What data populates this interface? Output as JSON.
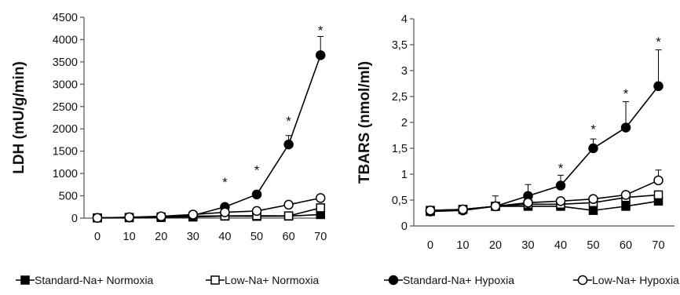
{
  "chart_data": [
    {
      "type": "line",
      "x": [
        0,
        10,
        20,
        30,
        40,
        50,
        60,
        70
      ],
      "ylabel": "LDH (mU/g/min)",
      "ylim": [
        0,
        4500
      ],
      "yticks": [
        0,
        500,
        1000,
        1500,
        2000,
        2500,
        3000,
        3500,
        4000,
        4500
      ],
      "ytick_labels": [
        "0",
        "500",
        "1000",
        "1500",
        "2000",
        "2500",
        "3000",
        "3500",
        "4000",
        "4500"
      ],
      "xtick_labels": [
        "0",
        "10",
        "20",
        "30",
        "40",
        "50",
        "60",
        "70"
      ],
      "grid": false,
      "series": [
        {
          "name": "Standard-Na+ Normoxia",
          "marker": "square-filled",
          "values": [
            5,
            10,
            15,
            25,
            45,
            40,
            45,
            80
          ],
          "errors": [
            0,
            0,
            0,
            0,
            0,
            0,
            0,
            0
          ]
        },
        {
          "name": "Low-Na+ Normoxia",
          "marker": "square-open",
          "values": [
            5,
            15,
            25,
            45,
            50,
            55,
            50,
            230
          ],
          "errors": [
            0,
            0,
            0,
            0,
            0,
            0,
            0,
            0
          ]
        },
        {
          "name": "Standard-Na+ Hypoxia",
          "marker": "circle-filled",
          "values": [
            5,
            15,
            20,
            60,
            250,
            530,
            1650,
            3650
          ],
          "errors": [
            0,
            0,
            0,
            0,
            0,
            0,
            200,
            420
          ]
        },
        {
          "name": "Low-Na+ Hypoxia",
          "marker": "circle-open",
          "values": [
            5,
            20,
            40,
            80,
            130,
            160,
            300,
            450
          ],
          "errors": [
            0,
            0,
            0,
            0,
            30,
            40,
            40,
            70
          ]
        }
      ],
      "annotations": [
        {
          "text": "*",
          "x": 40,
          "y": 880
        },
        {
          "text": "*",
          "x": 50,
          "y": 1150
        },
        {
          "text": "*",
          "x": 60,
          "y": 2250
        },
        {
          "text": "*",
          "x": 70,
          "y": 4280
        }
      ]
    },
    {
      "type": "line",
      "x": [
        0,
        10,
        20,
        30,
        40,
        50,
        60,
        70
      ],
      "ylabel": "TBARS (nmol/ml)",
      "ylim": [
        0,
        4
      ],
      "yticks": [
        0,
        0.5,
        1,
        1.5,
        2,
        2.5,
        3,
        3.5,
        4
      ],
      "ytick_labels": [
        "0",
        "0,5",
        "1",
        "1,5",
        "2",
        "2,5",
        "3",
        "3,5",
        "4"
      ],
      "xtick_labels": [
        "0",
        "10",
        "20",
        "30",
        "40",
        "50",
        "60",
        "70"
      ],
      "grid": false,
      "series": [
        {
          "name": "Standard-Na+ Normoxia",
          "marker": "square-filled",
          "values": [
            0.28,
            0.32,
            0.38,
            0.38,
            0.38,
            0.3,
            0.38,
            0.48
          ],
          "errors": [
            0.03,
            0.03,
            0.03,
            0.03,
            0.03,
            0.03,
            0.03,
            0.05
          ]
        },
        {
          "name": "Low-Na+ Normoxia",
          "marker": "square-open",
          "values": [
            0.3,
            0.32,
            0.38,
            0.42,
            0.42,
            0.45,
            0.55,
            0.6
          ],
          "errors": [
            0.03,
            0.03,
            0.03,
            0.05,
            0.05,
            0.05,
            0.05,
            0.07
          ]
        },
        {
          "name": "Standard-Na+ Hypoxia",
          "marker": "circle-filled",
          "values": [
            0.28,
            0.3,
            0.38,
            0.58,
            0.78,
            1.5,
            1.9,
            2.7
          ],
          "errors": [
            0.05,
            0.05,
            0.2,
            0.22,
            0.2,
            0.18,
            0.5,
            0.7
          ]
        },
        {
          "name": "Low-Na+ Hypoxia",
          "marker": "circle-open",
          "values": [
            0.3,
            0.32,
            0.38,
            0.45,
            0.48,
            0.52,
            0.6,
            0.88
          ],
          "errors": [
            0.03,
            0.03,
            0.03,
            0.05,
            0.05,
            0.07,
            0.07,
            0.2
          ]
        }
      ],
      "annotations": [
        {
          "text": "*",
          "x": 40,
          "y": 1.18
        },
        {
          "text": "*",
          "x": 50,
          "y": 1.93
        },
        {
          "text": "*",
          "x": 60,
          "y": 2.62
        },
        {
          "text": "*",
          "x": 70,
          "y": 3.62
        }
      ]
    }
  ],
  "legend": {
    "position": "bottom",
    "items": [
      {
        "label": "Standard-Na+ Normoxia",
        "marker": "square-filled"
      },
      {
        "label": "Low-Na+ Normoxia",
        "marker": "square-open"
      },
      {
        "label": "Standard-Na+ Hypoxia",
        "marker": "circle-filled"
      },
      {
        "label": "Low-Na+ Hypoxia",
        "marker": "circle-open"
      }
    ]
  },
  "colors": {
    "line": "#000000",
    "axis": "#555555",
    "fill": "#ffffff"
  }
}
